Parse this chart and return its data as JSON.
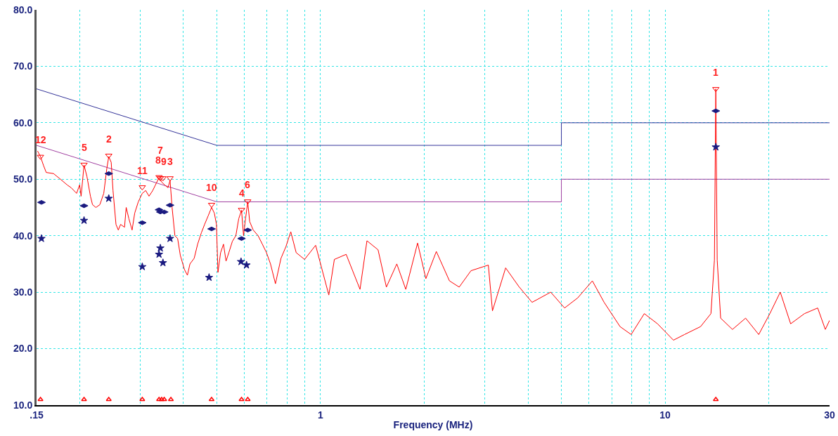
{
  "chart_data": {
    "type": "line",
    "xlabel": "Frequency (MHz)",
    "log": "x",
    "grid": true,
    "legend": false,
    "xlim": [
      0.15,
      30
    ],
    "xticks": [
      {
        "value": 0.15,
        "label": ".15"
      },
      {
        "value": 0.2,
        "label": null
      },
      {
        "value": 0.3,
        "label": null
      },
      {
        "value": 0.4,
        "label": null
      },
      {
        "value": 0.5,
        "label": null
      },
      {
        "value": 0.6,
        "label": null
      },
      {
        "value": 0.7,
        "label": null
      },
      {
        "value": 0.8,
        "label": null
      },
      {
        "value": 0.9,
        "label": null
      },
      1,
      {
        "value": 2,
        "label": null
      },
      {
        "value": 3,
        "label": null
      },
      {
        "value": 4,
        "label": null
      },
      {
        "value": 5,
        "label": null
      },
      {
        "value": 6,
        "label": null
      },
      {
        "value": 7,
        "label": null
      },
      {
        "value": 8,
        "label": null
      },
      {
        "value": 9,
        "label": null
      },
      10,
      {
        "value": 20,
        "label": null
      },
      30
    ],
    "ylim": [
      10,
      80
    ],
    "yticks": [
      {
        "value": 10,
        "label": "10.0"
      },
      {
        "value": 20,
        "label": "20.0"
      },
      {
        "value": 30,
        "label": "30.0"
      },
      {
        "value": 40,
        "label": "40.0"
      },
      {
        "value": 50,
        "label": "50.0"
      },
      {
        "value": 60,
        "label": "60.0"
      },
      {
        "value": 70,
        "label": "70.0"
      },
      {
        "value": 80,
        "label": "80.0"
      }
    ],
    "series": [
      {
        "type": "line",
        "color": "#333399",
        "x": [
          0.15,
          0.5,
          5,
          5,
          30
        ],
        "values": [
          66,
          56,
          56,
          60,
          60
        ]
      },
      {
        "type": "line",
        "color": "#a040a0",
        "x": [
          0.15,
          0.5,
          5,
          5,
          30
        ],
        "values": [
          56,
          46,
          46,
          50,
          50
        ]
      },
      {
        "type": "line",
        "color": "#ff0000",
        "x": [
          0.151,
          0.154,
          0.157,
          0.16,
          0.168,
          0.176,
          0.184,
          0.189,
          0.196,
          0.2,
          0.202,
          0.206,
          0.21,
          0.215,
          0.218,
          0.223,
          0.229,
          0.235,
          0.24,
          0.243,
          0.247,
          0.25,
          0.255,
          0.259,
          0.263,
          0.27,
          0.273,
          0.278,
          0.284,
          0.289,
          0.296,
          0.304,
          0.311,
          0.318,
          0.326,
          0.332,
          0.34,
          0.346,
          0.353,
          0.361,
          0.366,
          0.371,
          0.378,
          0.385,
          0.392,
          0.403,
          0.411,
          0.418,
          0.43,
          0.44,
          0.451,
          0.461,
          0.472,
          0.483,
          0.492,
          0.499,
          0.504,
          0.513,
          0.523,
          0.532,
          0.542,
          0.555,
          0.568,
          0.579,
          0.59,
          0.598,
          0.606,
          0.615,
          0.623,
          0.638,
          0.659,
          0.678,
          0.697,
          0.716,
          0.74,
          0.768,
          0.793,
          0.82,
          0.85,
          0.899,
          0.968,
          1.057,
          1.097,
          1.187,
          1.302,
          1.364,
          1.469,
          1.553,
          1.665,
          1.768,
          1.913,
          2.022,
          2.168,
          2.367,
          2.526,
          2.733,
          3.069,
          3.155,
          3.445,
          3.763,
          4.11,
          4.656,
          5.108,
          5.579,
          6.149,
          6.652,
          7.399,
          7.969,
          8.701,
          9.504,
          10.57,
          11.38,
          12.67,
          13.58,
          13.9,
          14.03,
          14.16,
          14.49,
          15.68,
          17.12,
          18.69,
          20.13,
          21.58,
          23.13,
          25.37,
          27.71,
          29.16,
          30
        ],
        "values": [
          55,
          54,
          52.5,
          51.2,
          51,
          50,
          49,
          48.5,
          47.5,
          49,
          47,
          52.5,
          50.5,
          47,
          45.5,
          45,
          45.5,
          47.5,
          52,
          54,
          53,
          48,
          42,
          41,
          42,
          41.5,
          45,
          43,
          41,
          44,
          46,
          47.5,
          48,
          47,
          48,
          49,
          50.3,
          49.5,
          49,
          48.5,
          49.8,
          45,
          40,
          39.5,
          36.5,
          34,
          33,
          35,
          36,
          38.5,
          40.5,
          42,
          43.5,
          45,
          44,
          42,
          33.5,
          37,
          38.5,
          35.5,
          37,
          39,
          40,
          43,
          44.5,
          40,
          43,
          46,
          42.5,
          41,
          40,
          38.5,
          37,
          35,
          31.5,
          36,
          38,
          40.7,
          37,
          35.8,
          38.3,
          29.5,
          35.8,
          36.7,
          30.5,
          39.1,
          37.5,
          30.9,
          35,
          30.5,
          38.7,
          32.4,
          37.2,
          32,
          30.9,
          33.8,
          34.8,
          26.7,
          34.3,
          31,
          28.2,
          30,
          27.2,
          29,
          32,
          28.2,
          23.9,
          22.5,
          26.2,
          24.4,
          21.5,
          22.5,
          23.9,
          26.2,
          35.7,
          66,
          35.7,
          25.4,
          23.4,
          25.4,
          22.5,
          26.2,
          30,
          24.4,
          26.2,
          27.2,
          23.4,
          25
        ]
      },
      {
        "type": "scatter",
        "marker": "triangle",
        "color": "#ff0000",
        "x": [
          0.154,
          0.206,
          0.243,
          0.304,
          0.34,
          0.343,
          0.349,
          0.366,
          0.483,
          0.59,
          0.615,
          14.03
        ],
        "values": [
          54,
          52.6,
          54.2,
          48.6,
          50.4,
          50.2,
          50.2,
          50.2,
          45.5,
          44.6,
          46.1,
          66
        ]
      },
      {
        "type": "scatter",
        "marker": "diamond",
        "color": "#1a1a80",
        "x": [
          0.155,
          0.206,
          0.243,
          0.304,
          0.34,
          0.343,
          0.352,
          0.366,
          0.483,
          0.59,
          0.615,
          14.03
        ],
        "values": [
          45.9,
          45.3,
          51,
          42.3,
          44.6,
          44.2,
          44.2,
          45.4,
          41.2,
          39.5,
          41,
          62.1
        ]
      },
      {
        "type": "scatter",
        "marker": "star",
        "color": "#1a1a80",
        "x": [
          0.155,
          0.206,
          0.243,
          0.304,
          0.34,
          0.343,
          0.349,
          0.366,
          0.475,
          0.588,
          0.61,
          14.03
        ],
        "values": [
          39.5,
          42.7,
          46.6,
          34.5,
          36.7,
          37.8,
          35.2,
          39.5,
          32.6,
          35.4,
          34.8,
          55.7
        ]
      },
      {
        "type": "scatter",
        "marker": "triangle",
        "color": "#ff0000",
        "x": [
          0.154,
          0.206,
          0.243,
          0.304,
          0.34,
          0.346,
          0.352,
          0.368,
          0.483,
          0.59,
          0.615,
          14.03
        ],
        "values": [
          11,
          11,
          11,
          11,
          11,
          11,
          11,
          11,
          11,
          11,
          11,
          11
        ]
      }
    ],
    "annotations": [
      {
        "text": "12",
        "x": 0.154,
        "y": 54
      },
      {
        "text": "5",
        "x": 0.206,
        "y": 52.6
      },
      {
        "text": "2",
        "x": 0.243,
        "y": 54.2
      },
      {
        "text": "11",
        "x": 0.304,
        "y": 48.6
      },
      {
        "text": "8",
        "x": 0.338,
        "y": 50.4
      },
      {
        "text": "7",
        "x": 0.343,
        "y": 50.2
      },
      {
        "text": "9",
        "x": 0.351,
        "y": 50.2
      },
      {
        "text": "3",
        "x": 0.366,
        "y": 50.2
      },
      {
        "text": "10",
        "x": 0.483,
        "y": 45.5
      },
      {
        "text": "4",
        "x": 0.59,
        "y": 44.6
      },
      {
        "text": "6",
        "x": 0.615,
        "y": 46.1
      },
      {
        "text": "1",
        "x": 14.03,
        "y": 66
      }
    ]
  }
}
